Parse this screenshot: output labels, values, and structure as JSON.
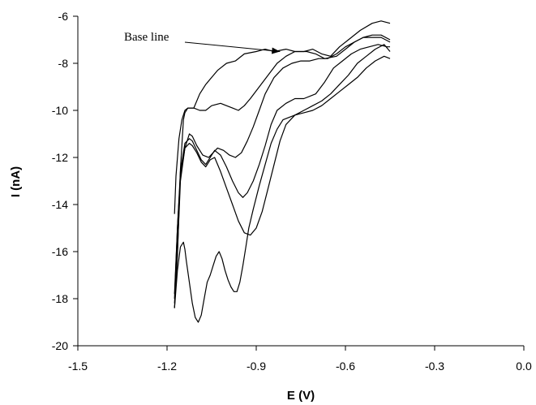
{
  "chart_data": {
    "type": "line",
    "title": "",
    "xlabel": "E (V)",
    "ylabel": "I (nA)",
    "xlim": [
      -1.5,
      0.0
    ],
    "ylim": [
      -20,
      -6
    ],
    "x_ticks": [
      "-1.5",
      "-1.2",
      "-0.9",
      "-0.6",
      "-0.3",
      "0.0"
    ],
    "y_ticks": [
      "-6",
      "-8",
      "-10",
      "-12",
      "-14",
      "-16",
      "-18",
      "-20"
    ],
    "x_tick_values": [
      -1.5,
      -1.2,
      -0.9,
      -0.6,
      -0.3,
      0.0
    ],
    "y_tick_values": [
      -6,
      -8,
      -10,
      -12,
      -14,
      -16,
      -18,
      -20
    ],
    "grid": false,
    "legend": "none",
    "annotation": {
      "text": "Base line",
      "arrow_to": {
        "x": -0.82,
        "y": -7.5
      }
    },
    "line_color": "#000000",
    "series": [
      {
        "x": [
          -1.175,
          -1.17,
          -1.16,
          -1.15,
          -1.14,
          -1.13,
          -1.11,
          -1.09,
          -1.07,
          -1.05,
          -1.03,
          -1.0,
          -0.97,
          -0.94,
          -0.9,
          -0.87,
          -0.84,
          -0.8,
          -0.77,
          -0.74,
          -0.71,
          -0.68,
          -0.65,
          -0.62,
          -0.59,
          -0.55,
          -0.51,
          -0.48,
          -0.45
        ],
        "y": [
          -14.4,
          -12.8,
          -11.2,
          -10.4,
          -10.0,
          -9.9,
          -9.9,
          -9.3,
          -8.9,
          -8.6,
          -8.3,
          -8.0,
          -7.9,
          -7.6,
          -7.5,
          -7.4,
          -7.5,
          -7.4,
          -7.5,
          -7.5,
          -7.4,
          -7.6,
          -7.7,
          -7.3,
          -7.0,
          -6.6,
          -6.3,
          -6.2,
          -6.3
        ]
      },
      {
        "x": [
          -1.175,
          -1.165,
          -1.155,
          -1.145,
          -1.14,
          -1.13,
          -1.11,
          -1.09,
          -1.07,
          -1.05,
          -1.02,
          -1.0,
          -0.98,
          -0.96,
          -0.94,
          -0.92,
          -0.89,
          -0.86,
          -0.83,
          -0.8,
          -0.77,
          -0.73,
          -0.7,
          -0.67,
          -0.63,
          -0.6,
          -0.57,
          -0.54,
          -0.51,
          -0.48,
          -0.45
        ],
        "y": [
          -18.4,
          -16.2,
          -12.5,
          -10.4,
          -10.1,
          -9.9,
          -9.9,
          -10.0,
          -10.0,
          -9.8,
          -9.7,
          -9.8,
          -9.9,
          -10.0,
          -9.8,
          -9.5,
          -9.0,
          -8.5,
          -8.0,
          -7.7,
          -7.5,
          -7.5,
          -7.6,
          -7.8,
          -7.7,
          -7.4,
          -7.1,
          -6.9,
          -6.8,
          -6.8,
          -7.0
        ]
      },
      {
        "x": [
          -1.175,
          -1.165,
          -1.155,
          -1.14,
          -1.125,
          -1.115,
          -1.1,
          -1.08,
          -1.06,
          -1.045,
          -1.03,
          -1.01,
          -0.99,
          -0.97,
          -0.95,
          -0.93,
          -0.91,
          -0.89,
          -0.87,
          -0.84,
          -0.81,
          -0.78,
          -0.75,
          -0.72,
          -0.69,
          -0.66,
          -0.63,
          -0.6,
          -0.57,
          -0.54,
          -0.51,
          -0.48,
          -0.45
        ],
        "y": [
          -18.2,
          -16.0,
          -13.0,
          -11.6,
          -11.0,
          -11.1,
          -11.5,
          -11.9,
          -12.0,
          -11.8,
          -11.6,
          -11.7,
          -11.9,
          -12.0,
          -11.8,
          -11.3,
          -10.7,
          -10.0,
          -9.3,
          -8.6,
          -8.2,
          -8.0,
          -7.9,
          -7.9,
          -7.8,
          -7.8,
          -7.6,
          -7.3,
          -7.1,
          -6.9,
          -6.9,
          -6.9,
          -7.1
        ]
      },
      {
        "x": [
          -1.175,
          -1.165,
          -1.155,
          -1.14,
          -1.125,
          -1.115,
          -1.1,
          -1.085,
          -1.07,
          -1.055,
          -1.04,
          -1.02,
          -1.0,
          -0.98,
          -0.96,
          -0.945,
          -0.93,
          -0.91,
          -0.89,
          -0.87,
          -0.85,
          -0.83,
          -0.8,
          -0.77,
          -0.74,
          -0.7,
          -0.67,
          -0.64,
          -0.61,
          -0.58,
          -0.55,
          -0.52,
          -0.49,
          -0.46,
          -0.45
        ],
        "y": [
          -18.0,
          -15.0,
          -12.6,
          -11.4,
          -11.2,
          -11.3,
          -11.7,
          -12.1,
          -12.3,
          -12.0,
          -11.7,
          -11.9,
          -12.4,
          -13.0,
          -13.5,
          -13.7,
          -13.5,
          -13.0,
          -12.3,
          -11.5,
          -10.6,
          -10.0,
          -9.7,
          -9.5,
          -9.5,
          -9.3,
          -8.8,
          -8.2,
          -7.9,
          -7.6,
          -7.4,
          -7.3,
          -7.2,
          -7.3,
          -7.3
        ]
      },
      {
        "x": [
          -1.175,
          -1.165,
          -1.155,
          -1.14,
          -1.125,
          -1.115,
          -1.1,
          -1.085,
          -1.07,
          -1.055,
          -1.04,
          -1.02,
          -1.0,
          -0.98,
          -0.96,
          -0.94,
          -0.92,
          -0.9,
          -0.88,
          -0.86,
          -0.84,
          -0.82,
          -0.8,
          -0.77,
          -0.74,
          -0.71,
          -0.68,
          -0.65,
          -0.62,
          -0.59,
          -0.56,
          -0.53,
          -0.5,
          -0.47,
          -0.45
        ],
        "y": [
          -17.8,
          -15.0,
          -12.8,
          -11.6,
          -11.4,
          -11.5,
          -11.8,
          -12.2,
          -12.4,
          -12.1,
          -12.0,
          -12.6,
          -13.3,
          -14.0,
          -14.7,
          -15.2,
          -15.3,
          -15.0,
          -14.3,
          -13.3,
          -12.3,
          -11.3,
          -10.6,
          -10.2,
          -10.0,
          -9.8,
          -9.6,
          -9.3,
          -8.9,
          -8.5,
          -8.0,
          -7.7,
          -7.4,
          -7.2,
          -7.5
        ]
      },
      {
        "x": [
          -1.175,
          -1.165,
          -1.155,
          -1.145,
          -1.14,
          -1.135,
          -1.125,
          -1.115,
          -1.105,
          -1.095,
          -1.085,
          -1.075,
          -1.065,
          -1.055,
          -1.045,
          -1.035,
          -1.025,
          -1.015,
          -1.005,
          -0.995,
          -0.985,
          -0.975,
          -0.965,
          -0.955,
          -0.945,
          -0.935,
          -0.925,
          -0.91,
          -0.89,
          -0.87,
          -0.85,
          -0.83,
          -0.81,
          -0.79,
          -0.77,
          -0.74,
          -0.71,
          -0.68,
          -0.65,
          -0.62,
          -0.59,
          -0.56,
          -0.53,
          -0.5,
          -0.47,
          -0.45
        ],
        "y": [
          -18.4,
          -16.8,
          -15.8,
          -15.6,
          -15.9,
          -16.4,
          -17.3,
          -18.2,
          -18.8,
          -19.0,
          -18.7,
          -18.0,
          -17.3,
          -17.0,
          -16.6,
          -16.2,
          -16.0,
          -16.3,
          -16.8,
          -17.2,
          -17.5,
          -17.7,
          -17.7,
          -17.3,
          -16.6,
          -15.8,
          -15.0,
          -14.2,
          -13.2,
          -12.3,
          -11.4,
          -10.8,
          -10.4,
          -10.3,
          -10.2,
          -10.1,
          -10.0,
          -9.8,
          -9.5,
          -9.2,
          -8.9,
          -8.6,
          -8.2,
          -7.9,
          -7.7,
          -7.8
        ]
      }
    ]
  }
}
